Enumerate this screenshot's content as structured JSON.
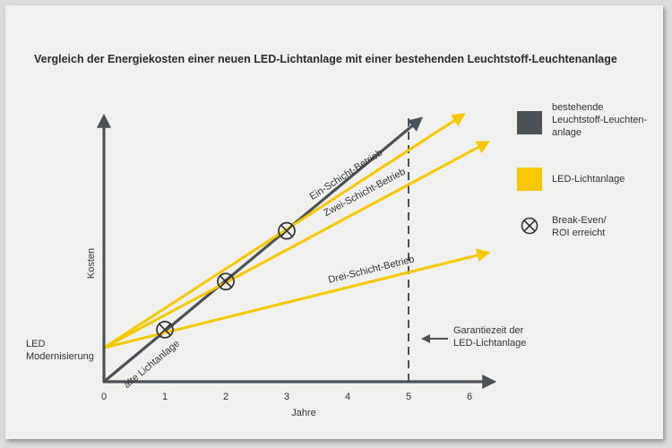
{
  "chart_data": {
    "type": "line",
    "title": "Vergleich der Energiekosten einer neuen LED-Lichtanlage mit einer bestehenden Leuchtstoff-Leuchtenanlage",
    "xlabel": "Jahre",
    "ylabel": "Kosten",
    "x_ticks": [
      "0",
      "1",
      "2",
      "3",
      "4",
      "5",
      "6"
    ],
    "xlim": [
      0,
      6.3
    ],
    "ylim": [
      0,
      1
    ],
    "y_start_label": "LED Modernisierung",
    "series": [
      {
        "name": "alte Lichtanlage",
        "group": "bestehende Leuchtstoff-Leuchten-anlage",
        "color": "#4a5257",
        "x": [
          0,
          5.2
        ],
        "y": [
          0,
          0.985
        ]
      },
      {
        "name": "Ein-Schicht-Betrieb",
        "group": "LED-Lichtanlage",
        "color": "#f7c800",
        "x": [
          0,
          5.9
        ],
        "y": [
          0.127,
          1.0
        ]
      },
      {
        "name": "Zwei-Schicht-Betrieb",
        "group": "LED-Lichtanlage",
        "color": "#f7c800",
        "x": [
          0,
          6.3
        ],
        "y": [
          0.127,
          0.897
        ]
      },
      {
        "name": "Drei-Schicht-Betrieb",
        "group": "LED-Lichtanlage",
        "color": "#f7c800",
        "x": [
          0,
          6.3
        ],
        "y": [
          0.127,
          0.483
        ]
      }
    ],
    "break_even_points": [
      {
        "x": 1,
        "y": 0.195
      },
      {
        "x": 2,
        "y": 0.375
      },
      {
        "x": 3,
        "y": 0.565
      }
    ],
    "guarantee_line": {
      "x": 5,
      "label": "Garantiezeit der LED-Lichtanlage"
    },
    "legend": {
      "position": "right",
      "items": [
        {
          "type": "box",
          "color": "#4a5257",
          "label": "bestehende Leuchtstoff-Leuchten-anlage"
        },
        {
          "type": "box",
          "color": "#f7c800",
          "label": "LED-Lichtanlage"
        },
        {
          "type": "marker",
          "label": "Break-Even/ ROI erreicht"
        }
      ]
    }
  }
}
